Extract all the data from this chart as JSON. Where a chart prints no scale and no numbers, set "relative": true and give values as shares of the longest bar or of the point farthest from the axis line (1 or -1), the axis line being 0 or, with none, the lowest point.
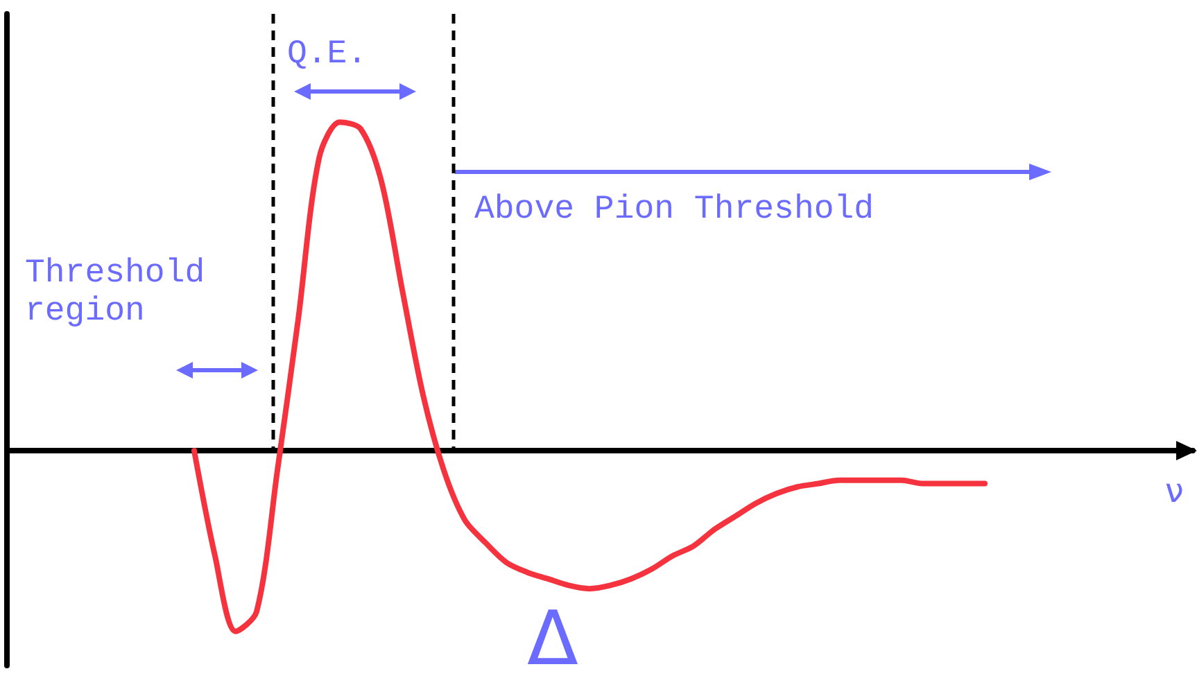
{
  "chart_data": {
    "type": "line",
    "relative": true,
    "color": "#f5333f",
    "marker": "none",
    "line_style": "solid",
    "xlabel": "ν",
    "annotations": [
      "Threshold region",
      "Q.E.",
      "Above Pion Threshold",
      "Δ"
    ],
    "categories": [
      null,
      null,
      null,
      null,
      null,
      null,
      null,
      null,
      null,
      null,
      null,
      null,
      null,
      null,
      null,
      null,
      null,
      null,
      null,
      null,
      null,
      null,
      null,
      null,
      null,
      null,
      null,
      null,
      null,
      null,
      null,
      null,
      null,
      null,
      null,
      null,
      null,
      null,
      null,
      null,
      null,
      null,
      null,
      null,
      null,
      null,
      null,
      null,
      null,
      null,
      null,
      null,
      null,
      null,
      null,
      null,
      null,
      null
    ],
    "values": [
      null,
      null,
      null,
      null,
      null,
      null,
      null,
      null,
      null,
      0,
      -0.32,
      -0.55,
      -0.49,
      -0.06,
      0.4,
      0.89,
      1,
      0.98,
      0.82,
      0.49,
      0.17,
      -0.06,
      -0.21,
      -0.28,
      -0.34,
      -0.37,
      -0.39,
      -0.41,
      -0.42,
      -0.41,
      -0.39,
      -0.36,
      -0.32,
      -0.29,
      -0.24,
      -0.2,
      -0.16,
      -0.13,
      -0.11,
      -0.1,
      -0.09,
      -0.09,
      -0.09,
      -0.09,
      -0.1,
      -0.1,
      -0.1,
      -0.1,
      null,
      null,
      null,
      null,
      null,
      null,
      null,
      null,
      null,
      null
    ]
  }
}
